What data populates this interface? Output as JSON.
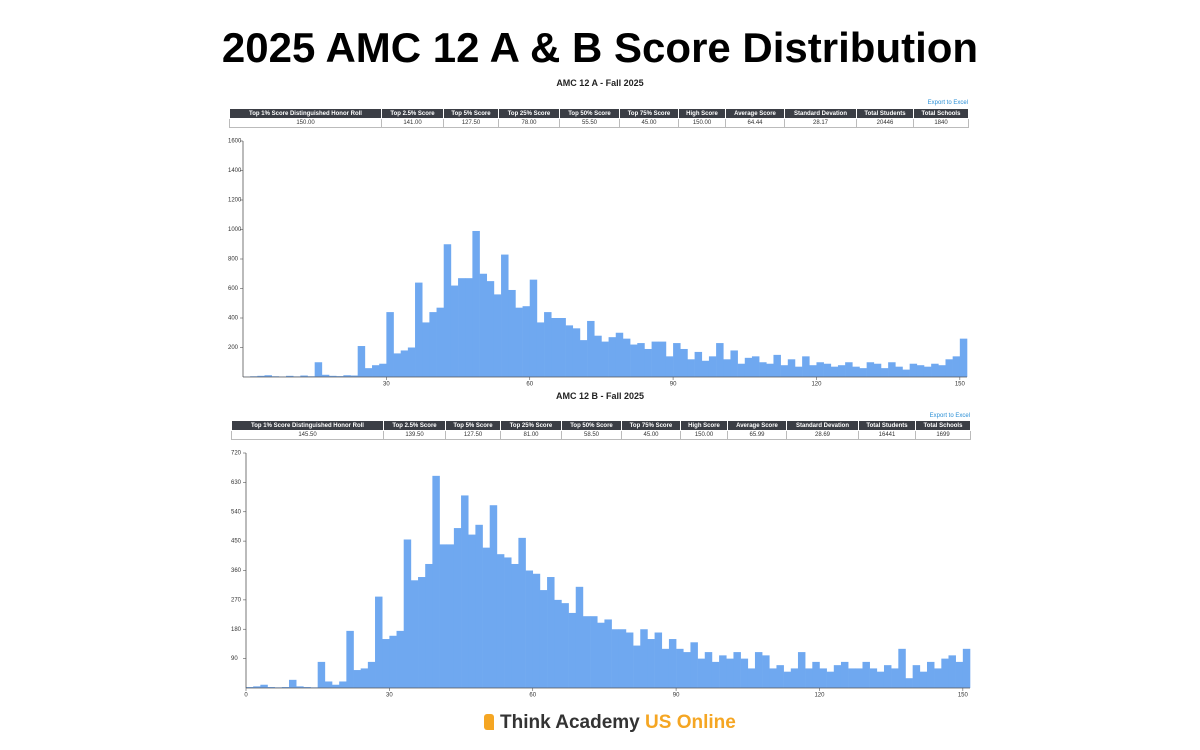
{
  "title": "2025 AMC 12 A & B Score Distribution",
  "brand": {
    "name": "Think Academy",
    "region": "US Online"
  },
  "tables": [
    {
      "export": "Export to Excel",
      "headers": [
        "Top 1% Score Distinguished Honor Roll",
        "Top 2.5% Score",
        "Top 5% Score",
        "Top 25% Score",
        "Top 50% Score",
        "Top 75% Score",
        "High Score",
        "Average Score",
        "Standard Devation",
        "Total Students",
        "Total Schools"
      ],
      "row": [
        "150.00",
        "141.00",
        "127.50",
        "78.00",
        "55.50",
        "45.00",
        "150.00",
        "64.44",
        "28.17",
        "20446",
        "1840"
      ]
    },
    {
      "export": "Export to Excel",
      "headers": [
        "Top 1% Score Distinguished Honor Roll",
        "Top 2.5% Score",
        "Top 5% Score",
        "Top 25% Score",
        "Top 50% Score",
        "Top 75% Score",
        "High Score",
        "Average Score",
        "Standard Devation",
        "Total Students",
        "Total Schools"
      ],
      "row": [
        "145.50",
        "139.50",
        "127.50",
        "81.00",
        "58.50",
        "45.00",
        "150.00",
        "65.99",
        "28.69",
        "16441",
        "1699"
      ]
    }
  ],
  "chart_data": [
    {
      "type": "histogram",
      "title": "AMC 12 A - Fall 2025",
      "color": "#6fa8f0",
      "bins": [
        0,
        1.5,
        3,
        4.5,
        6,
        7.5,
        9,
        10.5,
        12,
        13.5,
        15,
        16.5,
        18,
        19.5,
        21,
        22.5,
        24,
        25.5,
        27,
        28.5,
        30,
        31.5,
        33,
        34.5,
        36,
        37.5,
        39,
        40.5,
        42,
        43.5,
        45,
        46.5,
        48,
        49.5,
        51,
        52.5,
        54,
        55.5,
        57,
        58.5,
        60,
        61.5,
        63,
        64.5,
        66,
        67.5,
        69,
        70.5,
        72,
        73.5,
        75,
        76.5,
        78,
        79.5,
        81,
        82.5,
        84,
        85.5,
        87,
        88.5,
        90,
        91.5,
        93,
        94.5,
        96,
        97.5,
        99,
        100.5,
        102,
        103.5,
        105,
        106.5,
        108,
        109.5,
        111,
        112.5,
        114,
        115.5,
        117,
        118.5,
        120,
        121.5,
        123,
        124.5,
        126,
        127.5,
        129,
        130.5,
        132,
        133.5,
        135,
        136.5,
        138,
        139.5,
        141,
        142.5,
        144,
        145.5,
        147,
        148.5,
        150,
        151.5
      ],
      "values": [
        2,
        5,
        8,
        12,
        5,
        3,
        8,
        4,
        10,
        5,
        100,
        15,
        8,
        6,
        12,
        10,
        210,
        60,
        80,
        90,
        440,
        160,
        180,
        200,
        640,
        370,
        440,
        470,
        900,
        620,
        670,
        670,
        990,
        700,
        650,
        560,
        830,
        590,
        470,
        480,
        660,
        370,
        440,
        400,
        400,
        350,
        330,
        250,
        380,
        280,
        240,
        270,
        300,
        260,
        220,
        230,
        190,
        240,
        240,
        140,
        230,
        190,
        120,
        170,
        110,
        140,
        230,
        120,
        180,
        90,
        130,
        140,
        100,
        90,
        150,
        80,
        120,
        70,
        140,
        80,
        100,
        90,
        70,
        80,
        100,
        70,
        60,
        100,
        90,
        60,
        100,
        70,
        50,
        90,
        80,
        70,
        90,
        80,
        120,
        140,
        260
      ],
      "xlim": [
        0,
        151.5
      ],
      "xticks": [
        30,
        60,
        90,
        120,
        150
      ],
      "ylim": [
        0,
        1600
      ],
      "yticks": [
        200,
        400,
        600,
        800,
        1000,
        1200,
        1400,
        1600
      ]
    },
    {
      "type": "histogram",
      "title": "AMC 12 B - Fall 2025",
      "color": "#6fa8f0",
      "bins": [
        0,
        1.5,
        3,
        4.5,
        6,
        7.5,
        9,
        10.5,
        12,
        13.5,
        15,
        16.5,
        18,
        19.5,
        21,
        22.5,
        24,
        25.5,
        27,
        28.5,
        30,
        31.5,
        33,
        34.5,
        36,
        37.5,
        39,
        40.5,
        42,
        43.5,
        45,
        46.5,
        48,
        49.5,
        51,
        52.5,
        54,
        55.5,
        57,
        58.5,
        60,
        61.5,
        63,
        64.5,
        66,
        67.5,
        69,
        70.5,
        72,
        73.5,
        75,
        76.5,
        78,
        79.5,
        81,
        82.5,
        84,
        85.5,
        87,
        88.5,
        90,
        91.5,
        93,
        94.5,
        96,
        97.5,
        99,
        100.5,
        102,
        103.5,
        105,
        106.5,
        108,
        109.5,
        111,
        112.5,
        114,
        115.5,
        117,
        118.5,
        120,
        121.5,
        123,
        124.5,
        126,
        127.5,
        129,
        130.5,
        132,
        133.5,
        135,
        136.5,
        138,
        139.5,
        141,
        142.5,
        144,
        145.5,
        147,
        148.5,
        150,
        151.5
      ],
      "values": [
        3,
        5,
        10,
        3,
        2,
        3,
        25,
        5,
        3,
        2,
        80,
        20,
        10,
        20,
        175,
        55,
        60,
        80,
        280,
        150,
        160,
        175,
        455,
        330,
        340,
        380,
        650,
        440,
        440,
        490,
        590,
        470,
        500,
        430,
        560,
        410,
        400,
        380,
        460,
        360,
        350,
        300,
        340,
        270,
        260,
        230,
        310,
        220,
        220,
        200,
        210,
        180,
        180,
        170,
        130,
        180,
        150,
        170,
        120,
        150,
        120,
        110,
        140,
        90,
        110,
        80,
        100,
        90,
        110,
        90,
        60,
        110,
        100,
        60,
        70,
        50,
        60,
        110,
        60,
        80,
        60,
        50,
        70,
        80,
        60,
        60,
        80,
        60,
        50,
        70,
        60,
        120,
        30,
        70,
        50,
        80,
        60,
        90,
        100,
        80,
        120
      ],
      "xlim": [
        0,
        151.5
      ],
      "xticks": [
        0,
        30,
        60,
        90,
        120,
        150
      ],
      "ylim": [
        0,
        720
      ],
      "yticks": [
        90,
        180,
        270,
        360,
        450,
        540,
        630,
        720
      ]
    }
  ]
}
